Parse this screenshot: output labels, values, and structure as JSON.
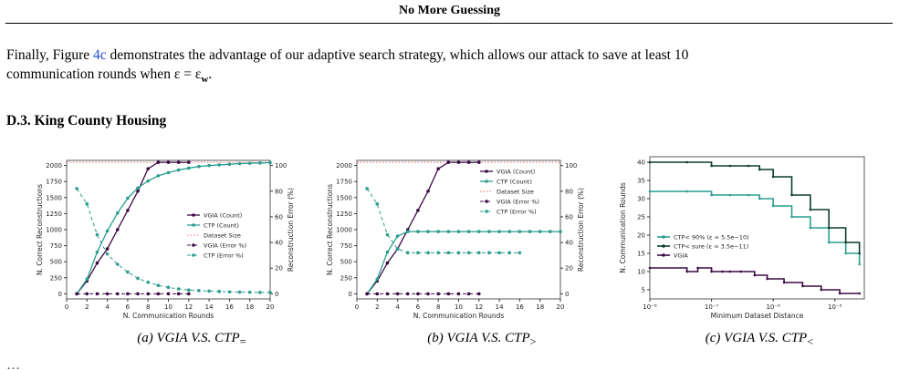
{
  "header": "No More Guessing",
  "paragraph": {
    "line1_pre": "Finally, Figure ",
    "fig_ref": "4c",
    "line1_post": " demonstrates the advantage of our adaptive search strategy, which allows our attack to save at least 10",
    "line2": "communication rounds when ε = ε",
    "line2_sub": "w",
    "line2_end": "."
  },
  "section_title": "D.3. King County Housing",
  "colors": {
    "vgia": "#3b0a45",
    "ctp": "#2a9d8f",
    "ctp_dark": "#0b3d2e",
    "dataset": "#e07070"
  },
  "figures": [
    {
      "caption_label": "(a) VGIA V.S. CTP",
      "caption_sub": "=",
      "chart_data": {
        "type": "line",
        "xlabel": "N. Communication Rounds",
        "ylabel": "N. Correct Reconstructions",
        "ylabel_right": "Reconstruction Error (%)",
        "xlim": [
          0,
          20
        ],
        "ylim": [
          -80,
          2080
        ],
        "x_ticks": [
          0,
          2,
          4,
          6,
          8,
          10,
          12,
          14,
          16,
          18,
          20
        ],
        "y_ticks": [
          0,
          250,
          500,
          750,
          1000,
          1250,
          1500,
          1750,
          2000
        ],
        "y2_ticks": [
          0,
          20,
          40,
          60,
          80,
          100
        ],
        "dataset_size": 2050,
        "legend_position": "center-right",
        "series": [
          {
            "name": "VGIA (Count)",
            "axis": "left",
            "style": "solid-vgia",
            "x": [
              1,
              2,
              3,
              4,
              5,
              6,
              7,
              8,
              9,
              10,
              11,
              12
            ],
            "values": [
              0,
              200,
              480,
              700,
              1000,
              1300,
              1600,
              1950,
              2050,
              2050,
              2050,
              2050
            ]
          },
          {
            "name": "CTP (Count)",
            "axis": "left",
            "style": "solid-ctp",
            "x": [
              1,
              2,
              3,
              4,
              5,
              6,
              7,
              8,
              9,
              10,
              11,
              12,
              13,
              14,
              15,
              16,
              17,
              18,
              19,
              20
            ],
            "values": [
              0,
              230,
              650,
              980,
              1260,
              1490,
              1650,
              1760,
              1840,
              1890,
              1930,
              1960,
              1985,
              2000,
              2010,
              2020,
              2030,
              2035,
              2040,
              2045
            ]
          },
          {
            "name": "Dataset Size",
            "axis": "left",
            "style": "dotted-red"
          },
          {
            "name": "VGIA (Error %)",
            "axis": "right",
            "style": "dashed-vgia",
            "x": [
              1,
              2,
              3,
              4,
              5,
              6,
              7,
              8,
              9,
              10,
              11,
              12
            ],
            "values": [
              0,
              0,
              0,
              0,
              0,
              0,
              0,
              0,
              0,
              0,
              0,
              0
            ]
          },
          {
            "name": "CTP (Error %)",
            "axis": "right",
            "style": "dashed-ctp",
            "x": [
              1,
              2,
              3,
              4,
              5,
              6,
              7,
              8,
              9,
              10,
              11,
              12,
              13,
              14,
              15,
              16,
              17,
              18,
              19,
              20
            ],
            "values": [
              82,
              70,
              46,
              31,
              23,
              17,
              12,
              9,
              6.5,
              5,
              3.8,
              3,
              2.5,
              2.1,
              1.8,
              1.5,
              1.3,
              1.2,
              1.1,
              1
            ]
          }
        ]
      }
    },
    {
      "caption_label": "(b) VGIA V.S. CTP",
      "caption_sub": ">",
      "chart_data": {
        "type": "line",
        "xlabel": "N. Communication Rounds",
        "ylabel": "N. Correct Reconstructions",
        "ylabel_right": "Reconstruction Error (%)",
        "xlim": [
          0,
          20
        ],
        "ylim": [
          -80,
          2080
        ],
        "x_ticks": [
          0,
          2,
          4,
          6,
          8,
          10,
          12,
          14,
          16,
          18,
          20
        ],
        "y_ticks": [
          0,
          250,
          500,
          750,
          1000,
          1250,
          1500,
          1750,
          2000
        ],
        "y2_ticks": [
          0,
          20,
          40,
          60,
          80,
          100
        ],
        "dataset_size": 2050,
        "legend_position": "top-right",
        "series": [
          {
            "name": "VGIA (Count)",
            "axis": "left",
            "style": "solid-vgia",
            "x": [
              1,
              2,
              3,
              4,
              5,
              6,
              7,
              8,
              9,
              10,
              11,
              12
            ],
            "values": [
              0,
              200,
              480,
              700,
              1000,
              1300,
              1600,
              1950,
              2050,
              2050,
              2050,
              2050
            ]
          },
          {
            "name": "CTP (Count)",
            "axis": "left",
            "style": "solid-ctp",
            "x": [
              1,
              2,
              3,
              4,
              5,
              6,
              7,
              8,
              9,
              10,
              11,
              12,
              13,
              14,
              15,
              16,
              17,
              18,
              19,
              20
            ],
            "values": [
              0,
              230,
              650,
              900,
              970,
              970,
              970,
              970,
              970,
              970,
              970,
              970,
              970,
              970,
              970,
              970,
              970,
              970,
              970,
              970
            ]
          },
          {
            "name": "Dataset Size",
            "axis": "left",
            "style": "dotted-red"
          },
          {
            "name": "VGIA (Error %)",
            "axis": "right",
            "style": "dashed-vgia",
            "x": [
              1,
              2,
              3,
              4,
              5,
              6,
              7,
              8,
              9,
              10,
              11,
              12
            ],
            "values": [
              0,
              0,
              0,
              0,
              0,
              0,
              0,
              0,
              0,
              0,
              0,
              0
            ]
          },
          {
            "name": "CTP (Error %)",
            "axis": "right",
            "style": "dashed-ctp",
            "x": [
              1,
              2,
              3,
              4,
              5,
              6,
              7,
              8,
              9,
              10,
              11,
              12,
              13,
              14,
              15,
              16
            ],
            "values": [
              82,
              70,
              46,
              35,
              32,
              32,
              32,
              32,
              32,
              32,
              32,
              32,
              32,
              32,
              32,
              32
            ]
          }
        ]
      }
    },
    {
      "caption_label": "(c) VGIA V.S. CTP",
      "caption_sub": "<",
      "chart_data": {
        "type": "line",
        "xlabel": "Minimum Dataset Distance",
        "ylabel": "N. Communication Rounds",
        "x_scale": "log",
        "xlim": [
          1e-08,
          3e-05
        ],
        "ylim": [
          2.5,
          41.5
        ],
        "x_ticks": [
          1e-08,
          1e-07,
          1e-06,
          1e-05
        ],
        "x_tick_labels": [
          "10⁻⁸",
          "10⁻⁷",
          "10⁻⁶",
          "10⁻⁵"
        ],
        "y_ticks": [
          5,
          10,
          15,
          20,
          25,
          30,
          35,
          40
        ],
        "legend_position": "center-left",
        "series": [
          {
            "name": "CTP< 90% (ε ≈ 5.5e−10)",
            "style": "step-ctp",
            "x": [
              1e-08,
              4e-08,
              1e-07,
              2e-07,
              4e-07,
              6e-07,
              1e-06,
              2e-06,
              4e-06,
              8e-06,
              1.5e-05,
              2.5e-05
            ],
            "values": [
              32,
              32,
              31,
              31,
              31,
              30,
              28,
              25,
              22,
              18,
              15,
              12
            ]
          },
          {
            "name": "CTP< sure (ε ≈ 3.5e−11)",
            "style": "step-ctp-dark",
            "x": [
              1e-08,
              4e-08,
              1e-07,
              2e-07,
              4e-07,
              6e-07,
              1e-06,
              2e-06,
              4e-06,
              8e-06,
              1.5e-05,
              2.5e-05
            ],
            "values": [
              40,
              40,
              39,
              39,
              39,
              38,
              36,
              31,
              27,
              22,
              18,
              15
            ]
          },
          {
            "name": "VGIA",
            "style": "step-vgia",
            "x": [
              1e-08,
              4e-08,
              6e-08,
              1e-07,
              1.5e-07,
              2e-07,
              3e-07,
              5e-07,
              8e-07,
              1.5e-06,
              3e-06,
              6e-06,
              1.2e-05,
              2.5e-05
            ],
            "values": [
              11,
              10,
              11,
              10,
              10,
              10,
              10,
              9,
              8,
              7,
              6,
              5,
              4,
              4
            ]
          }
        ]
      }
    }
  ],
  "bottom_line": "…"
}
